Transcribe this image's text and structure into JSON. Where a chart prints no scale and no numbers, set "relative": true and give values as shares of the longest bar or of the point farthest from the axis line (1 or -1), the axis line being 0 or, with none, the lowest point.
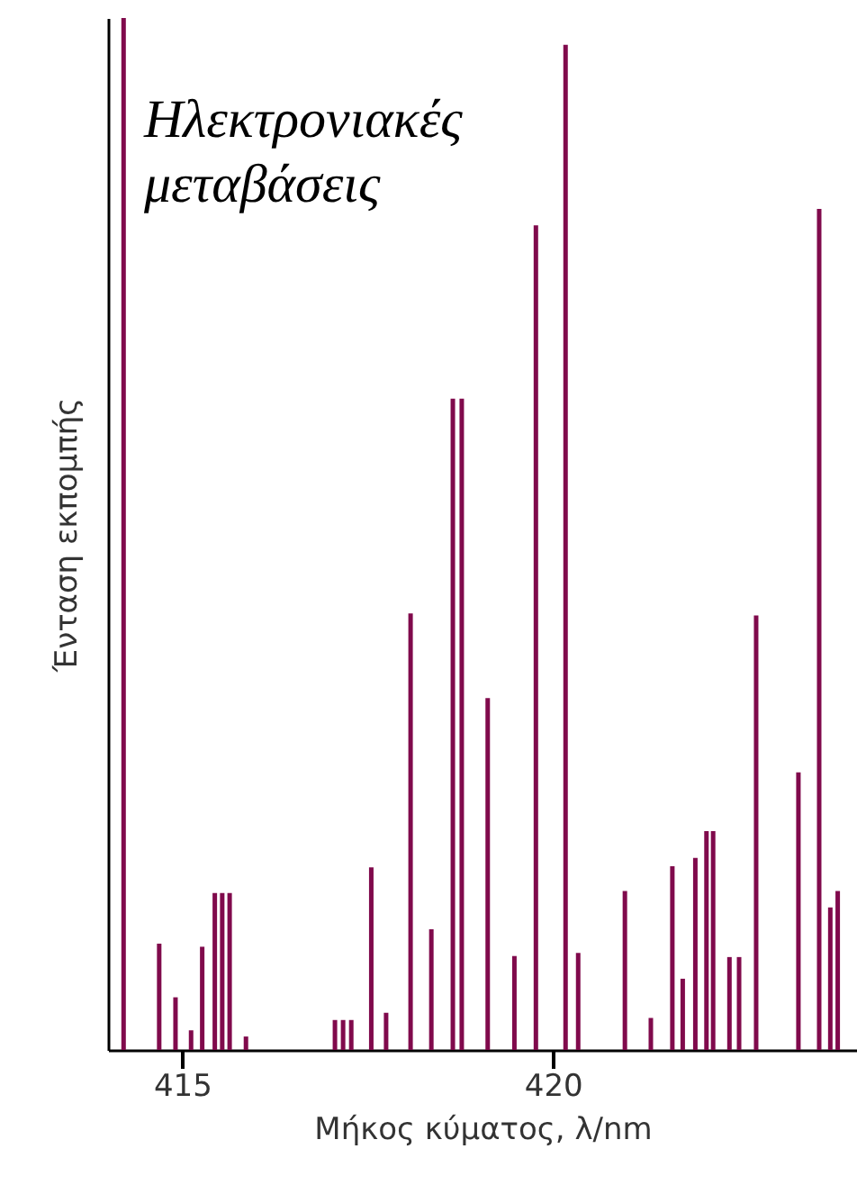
{
  "chart_data": {
    "type": "bar",
    "relative": true,
    "xlabel": "Μήκος κύματος, λ/nm",
    "ylabel": "Ένταση εκπομπής",
    "annotations": [
      "Ηλεκτρονιακές μεταβάσεις"
    ],
    "color": "#800a4c",
    "xlim": [
      414,
      424.1
    ],
    "xticks": [
      415,
      420
    ],
    "grid": false,
    "x": [
      414.21,
      414.69,
      414.91,
      415.12,
      415.27,
      415.44,
      415.54,
      415.64,
      415.86,
      417.06,
      417.17,
      417.28,
      417.55,
      417.75,
      418.08,
      418.36,
      418.65,
      418.77,
      419.12,
      419.48,
      419.77,
      420.17,
      420.34,
      420.97,
      421.32,
      421.61,
      421.75,
      421.92,
      422.07,
      422.16,
      422.38,
      422.51,
      422.74,
      423.31,
      423.59,
      423.74,
      423.84
    ],
    "values": [
      1.0,
      0.103,
      0.051,
      0.019,
      0.1,
      0.152,
      0.152,
      0.152,
      0.013,
      0.029,
      0.029,
      0.029,
      0.177,
      0.036,
      0.423,
      0.117,
      0.631,
      0.631,
      0.341,
      0.091,
      0.799,
      0.974,
      0.094,
      0.154,
      0.031,
      0.178,
      0.069,
      0.186,
      0.212,
      0.212,
      0.09,
      0.09,
      0.421,
      0.269,
      0.815,
      0.138,
      0.154
    ]
  }
}
